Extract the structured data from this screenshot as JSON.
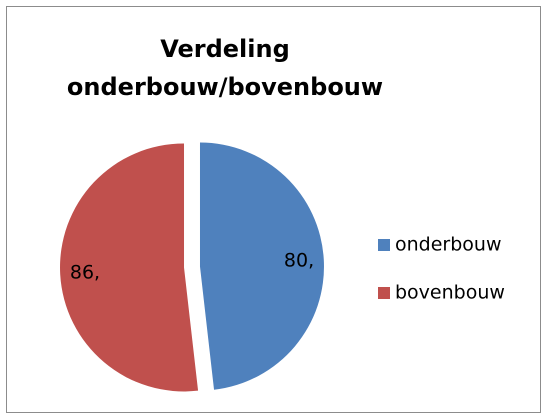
{
  "chart_data": {
    "type": "pie",
    "title": "Verdeling onderbouw/bovenbouw",
    "categories": [
      "onderbouw",
      "bovenbouw"
    ],
    "values": [
      80,
      86
    ],
    "value_labels": [
      "80,",
      "86,"
    ],
    "colors": [
      "#4f81bd",
      "#c0504d"
    ],
    "legend": "right"
  }
}
